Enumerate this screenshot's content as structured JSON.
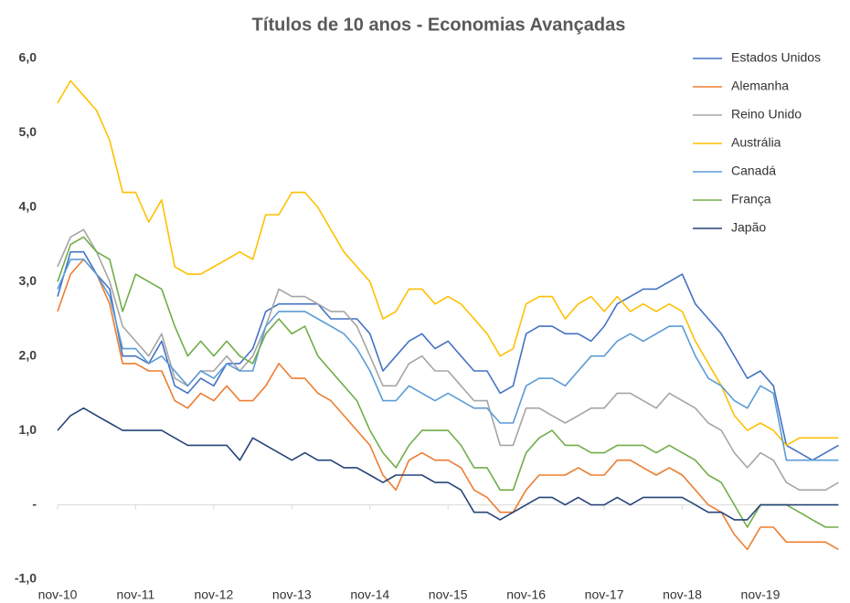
{
  "chart_data": {
    "type": "line",
    "title": "Títulos de 10 anos - Economias Avançadas",
    "categories": [
      "nov-10",
      null,
      null,
      null,
      null,
      null,
      "nov-11",
      null,
      null,
      null,
      null,
      null,
      "nov-12",
      null,
      null,
      null,
      null,
      null,
      "nov-13",
      null,
      null,
      null,
      null,
      null,
      "nov-14",
      null,
      null,
      null,
      null,
      null,
      "nov-15",
      null,
      null,
      null,
      null,
      null,
      "nov-16",
      null,
      null,
      null,
      null,
      null,
      "nov-17",
      null,
      null,
      null,
      null,
      null,
      "nov-18",
      null,
      null,
      null,
      null,
      null,
      "nov-19",
      null,
      null,
      null,
      null,
      null,
      null
    ],
    "ylim": [
      -1,
      6
    ],
    "yticks": [
      {
        "value": -1,
        "label": "-1,0"
      },
      {
        "value": 0,
        "label": "-"
      },
      {
        "value": 1,
        "label": "1,0"
      },
      {
        "value": 2,
        "label": "2,0"
      },
      {
        "value": 3,
        "label": "3,0"
      },
      {
        "value": 4,
        "label": "4,0"
      },
      {
        "value": 5,
        "label": "5,0"
      },
      {
        "value": 6,
        "label": "6,0"
      }
    ],
    "legend": "top-right",
    "series": [
      {
        "name": "Estados Unidos",
        "color": "#4472c4",
        "values": [
          2.8,
          3.4,
          3.4,
          3.1,
          2.9,
          2.0,
          2.0,
          1.9,
          2.2,
          1.6,
          1.5,
          1.7,
          1.6,
          1.9,
          1.9,
          2.1,
          2.6,
          2.7,
          2.7,
          2.7,
          2.7,
          2.5,
          2.5,
          2.5,
          2.3,
          1.8,
          2.0,
          2.2,
          2.3,
          2.1,
          2.2,
          2.0,
          1.8,
          1.8,
          1.5,
          1.6,
          2.3,
          2.4,
          2.4,
          2.3,
          2.3,
          2.2,
          2.4,
          2.7,
          2.8,
          2.9,
          2.9,
          3.0,
          3.1,
          2.7,
          2.5,
          2.3,
          2.0,
          1.7,
          1.8,
          1.6,
          0.8,
          0.7,
          0.6,
          0.7,
          0.8
        ]
      },
      {
        "name": "Alemanha",
        "color": "#ed7d31",
        "values": [
          2.6,
          3.1,
          3.3,
          3.1,
          2.7,
          1.9,
          1.9,
          1.8,
          1.8,
          1.4,
          1.3,
          1.5,
          1.4,
          1.6,
          1.4,
          1.4,
          1.6,
          1.9,
          1.7,
          1.7,
          1.5,
          1.4,
          1.2,
          1.0,
          0.8,
          0.4,
          0.2,
          0.6,
          0.7,
          0.6,
          0.6,
          0.5,
          0.2,
          0.1,
          -0.1,
          -0.1,
          0.2,
          0.4,
          0.4,
          0.4,
          0.5,
          0.4,
          0.4,
          0.6,
          0.6,
          0.5,
          0.4,
          0.5,
          0.4,
          0.2,
          0.0,
          -0.1,
          -0.4,
          -0.6,
          -0.3,
          -0.3,
          -0.5,
          -0.5,
          -0.5,
          -0.5,
          -0.6
        ]
      },
      {
        "name": "Reino Unido",
        "color": "#a5a5a5",
        "values": [
          3.2,
          3.6,
          3.7,
          3.4,
          3.0,
          2.4,
          2.2,
          2.0,
          2.3,
          1.7,
          1.6,
          1.8,
          1.8,
          2.0,
          1.8,
          2.0,
          2.4,
          2.9,
          2.8,
          2.8,
          2.7,
          2.6,
          2.6,
          2.4,
          2.0,
          1.6,
          1.6,
          1.9,
          2.0,
          1.8,
          1.8,
          1.6,
          1.4,
          1.4,
          0.8,
          0.8,
          1.3,
          1.3,
          1.2,
          1.1,
          1.2,
          1.3,
          1.3,
          1.5,
          1.5,
          1.4,
          1.3,
          1.5,
          1.4,
          1.3,
          1.1,
          1.0,
          0.7,
          0.5,
          0.7,
          0.6,
          0.3,
          0.2,
          0.2,
          0.2,
          0.3
        ]
      },
      {
        "name": "Austrália",
        "color": "#ffc000",
        "values": [
          5.4,
          5.7,
          5.5,
          5.3,
          4.9,
          4.2,
          4.2,
          3.8,
          4.1,
          3.2,
          3.1,
          3.1,
          3.2,
          3.3,
          3.4,
          3.3,
          3.9,
          3.9,
          4.2,
          4.2,
          4.0,
          3.7,
          3.4,
          3.2,
          3.0,
          2.5,
          2.6,
          2.9,
          2.9,
          2.7,
          2.8,
          2.7,
          2.5,
          2.3,
          2.0,
          2.1,
          2.7,
          2.8,
          2.8,
          2.5,
          2.7,
          2.8,
          2.6,
          2.8,
          2.6,
          2.7,
          2.6,
          2.7,
          2.6,
          2.2,
          1.9,
          1.6,
          1.2,
          1.0,
          1.1,
          1.0,
          0.8,
          0.9,
          0.9,
          0.9,
          0.9
        ]
      },
      {
        "name": "Canadá",
        "color": "#5b9bd5",
        "values": [
          2.9,
          3.3,
          3.3,
          3.1,
          2.8,
          2.1,
          2.1,
          1.9,
          2.0,
          1.8,
          1.6,
          1.8,
          1.7,
          1.9,
          1.8,
          1.8,
          2.4,
          2.6,
          2.6,
          2.6,
          2.5,
          2.4,
          2.3,
          2.1,
          1.8,
          1.4,
          1.4,
          1.6,
          1.5,
          1.4,
          1.5,
          1.4,
          1.3,
          1.3,
          1.1,
          1.1,
          1.6,
          1.7,
          1.7,
          1.6,
          1.8,
          2.0,
          2.0,
          2.2,
          2.3,
          2.2,
          2.3,
          2.4,
          2.4,
          2.0,
          1.7,
          1.6,
          1.4,
          1.3,
          1.6,
          1.5,
          0.6,
          0.6,
          0.6,
          0.6,
          0.6
        ]
      },
      {
        "name": "França",
        "color": "#70ad47",
        "values": [
          3.0,
          3.5,
          3.6,
          3.4,
          3.3,
          2.6,
          3.1,
          3.0,
          2.9,
          2.4,
          2.0,
          2.2,
          2.0,
          2.2,
          2.0,
          1.9,
          2.3,
          2.5,
          2.3,
          2.4,
          2.0,
          1.8,
          1.6,
          1.4,
          1.0,
          0.7,
          0.5,
          0.8,
          1.0,
          1.0,
          1.0,
          0.8,
          0.5,
          0.5,
          0.2,
          0.2,
          0.7,
          0.9,
          1.0,
          0.8,
          0.8,
          0.7,
          0.7,
          0.8,
          0.8,
          0.8,
          0.7,
          0.8,
          0.7,
          0.6,
          0.4,
          0.3,
          0.0,
          -0.3,
          0.0,
          0.0,
          0.0,
          -0.1,
          -0.2,
          -0.3,
          -0.3
        ]
      },
      {
        "name": "Japão",
        "color": "#264478",
        "values": [
          1.0,
          1.2,
          1.3,
          1.2,
          1.1,
          1.0,
          1.0,
          1.0,
          1.0,
          0.9,
          0.8,
          0.8,
          0.8,
          0.8,
          0.6,
          0.9,
          0.8,
          0.7,
          0.6,
          0.7,
          0.6,
          0.6,
          0.5,
          0.5,
          0.4,
          0.3,
          0.4,
          0.4,
          0.4,
          0.3,
          0.3,
          0.2,
          -0.1,
          -0.1,
          -0.2,
          -0.1,
          0.0,
          0.1,
          0.1,
          0.0,
          0.1,
          0.0,
          0.0,
          0.1,
          0.0,
          0.1,
          0.1,
          0.1,
          0.1,
          0.0,
          -0.1,
          -0.1,
          -0.2,
          -0.2,
          0.0,
          0.0,
          0.0,
          0.0,
          0.0,
          0.0,
          0.0
        ]
      }
    ]
  }
}
